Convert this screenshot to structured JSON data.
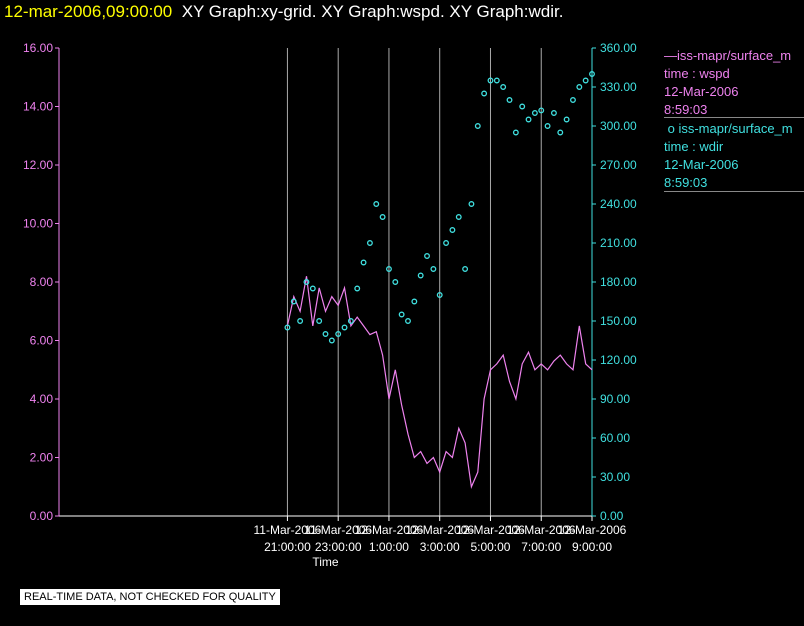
{
  "header": {
    "date": "12-mar-2006,09:00:00",
    "graphs": "XY Graph:xy-grid.  XY Graph:wspd.  XY Graph:wdir."
  },
  "legend": [
    {
      "series": "iss-mapr/surface_m",
      "line": "time : wspd",
      "date": "12-Mar-2006",
      "time": "8:59:03",
      "color": "#ee82ee",
      "marker": "line"
    },
    {
      "series": "iss-mapr/surface_m",
      "line": "time : wdir",
      "date": "12-Mar-2006",
      "time": "8:59:03",
      "color": "#40e0e0",
      "marker": "circle"
    }
  ],
  "note": "REAL-TIME DATA, NOT CHECKED FOR QUALITY",
  "chart_data": {
    "type": "line",
    "xlabel": "Time",
    "x_range_hours": [
      -12.0,
      9.0
    ],
    "x_ticks": [
      {
        "t": -3,
        "d": "11-Mar-2006",
        "h": "21:00:00"
      },
      {
        "t": -1,
        "d": "11-Mar-2006",
        "h": "23:00:00"
      },
      {
        "t": 1,
        "d": "12-Mar-2006",
        "h": "1:00:00"
      },
      {
        "t": 3,
        "d": "12-Mar-2006",
        "h": "3:00:00"
      },
      {
        "t": 5,
        "d": "12-Mar-2006",
        "h": "5:00:00"
      },
      {
        "t": 7,
        "d": "12-Mar-2006",
        "h": "7:00:00"
      },
      {
        "t": 9,
        "d": "12-Mar-2006",
        "h": "9:00:00"
      }
    ],
    "grid": true,
    "left_axis": {
      "min": 0,
      "max": 16,
      "ticks": [
        "0.00",
        "2.00",
        "4.00",
        "6.00",
        "8.00",
        "10.00",
        "12.00",
        "14.00",
        "16.00"
      ],
      "color": "#ee82ee"
    },
    "right_axis": {
      "min": 0,
      "max": 360,
      "ticks": [
        "0.00",
        "30.00",
        "60.00",
        "90.00",
        "120.00",
        "150.00",
        "180.00",
        "210.00",
        "240.00",
        "270.00",
        "300.00",
        "330.00",
        "360.00"
      ],
      "color": "#40e0e0"
    },
    "series": [
      {
        "key": "wspd",
        "axis": "left",
        "style": "line",
        "color": "#ee82ee",
        "x": [
          -3.0,
          -2.75,
          -2.5,
          -2.25,
          -2.0,
          -1.75,
          -1.5,
          -1.25,
          -1.0,
          -0.75,
          -0.5,
          -0.25,
          0.0,
          0.25,
          0.5,
          0.75,
          1.0,
          1.25,
          1.5,
          1.75,
          2.0,
          2.25,
          2.5,
          2.75,
          3.0,
          3.25,
          3.5,
          3.75,
          4.0,
          4.25,
          4.5,
          4.75,
          5.0,
          5.25,
          5.5,
          5.75,
          6.0,
          6.25,
          6.5,
          6.75,
          7.0,
          7.25,
          7.5,
          7.75,
          8.0,
          8.25,
          8.5,
          8.75,
          9.0
        ],
        "y": [
          6.5,
          7.5,
          7.0,
          8.2,
          6.5,
          7.8,
          7.0,
          7.5,
          7.2,
          7.8,
          6.5,
          6.8,
          6.5,
          6.2,
          6.3,
          5.5,
          4.0,
          5.0,
          3.8,
          2.8,
          2.0,
          2.2,
          1.8,
          2.0,
          1.5,
          2.2,
          2.0,
          3.0,
          2.5,
          1.0,
          1.5,
          4.0,
          5.0,
          5.2,
          5.5,
          4.6,
          4.0,
          5.2,
          5.6,
          5.0,
          5.2,
          5.0,
          5.3,
          5.5,
          5.2,
          5.0,
          6.5,
          5.2,
          5.0
        ]
      },
      {
        "key": "wdir",
        "axis": "right",
        "style": "scatter",
        "color": "#40e0e0",
        "x": [
          -3.0,
          -2.75,
          -2.5,
          -2.25,
          -2.0,
          -1.75,
          -1.5,
          -1.25,
          -1.0,
          -0.75,
          -0.5,
          -0.25,
          0.0,
          0.25,
          0.5,
          0.75,
          1.0,
          1.25,
          1.5,
          1.75,
          2.0,
          2.25,
          2.5,
          2.75,
          3.0,
          3.25,
          3.5,
          3.75,
          4.0,
          4.25,
          4.5,
          4.75,
          5.0,
          5.25,
          5.5,
          5.75,
          6.0,
          6.25,
          6.5,
          6.75,
          7.0,
          7.25,
          7.5,
          7.75,
          8.0,
          8.25,
          8.5,
          8.75,
          9.0
        ],
        "y": [
          145,
          165,
          150,
          180,
          175,
          150,
          140,
          135,
          140,
          145,
          150,
          175,
          195,
          210,
          240,
          230,
          190,
          180,
          155,
          150,
          165,
          185,
          200,
          190,
          170,
          210,
          220,
          230,
          190,
          240,
          300,
          325,
          335,
          335,
          330,
          320,
          295,
          315,
          305,
          310,
          312,
          300,
          310,
          295,
          305,
          320,
          330,
          335,
          340
        ]
      }
    ]
  }
}
